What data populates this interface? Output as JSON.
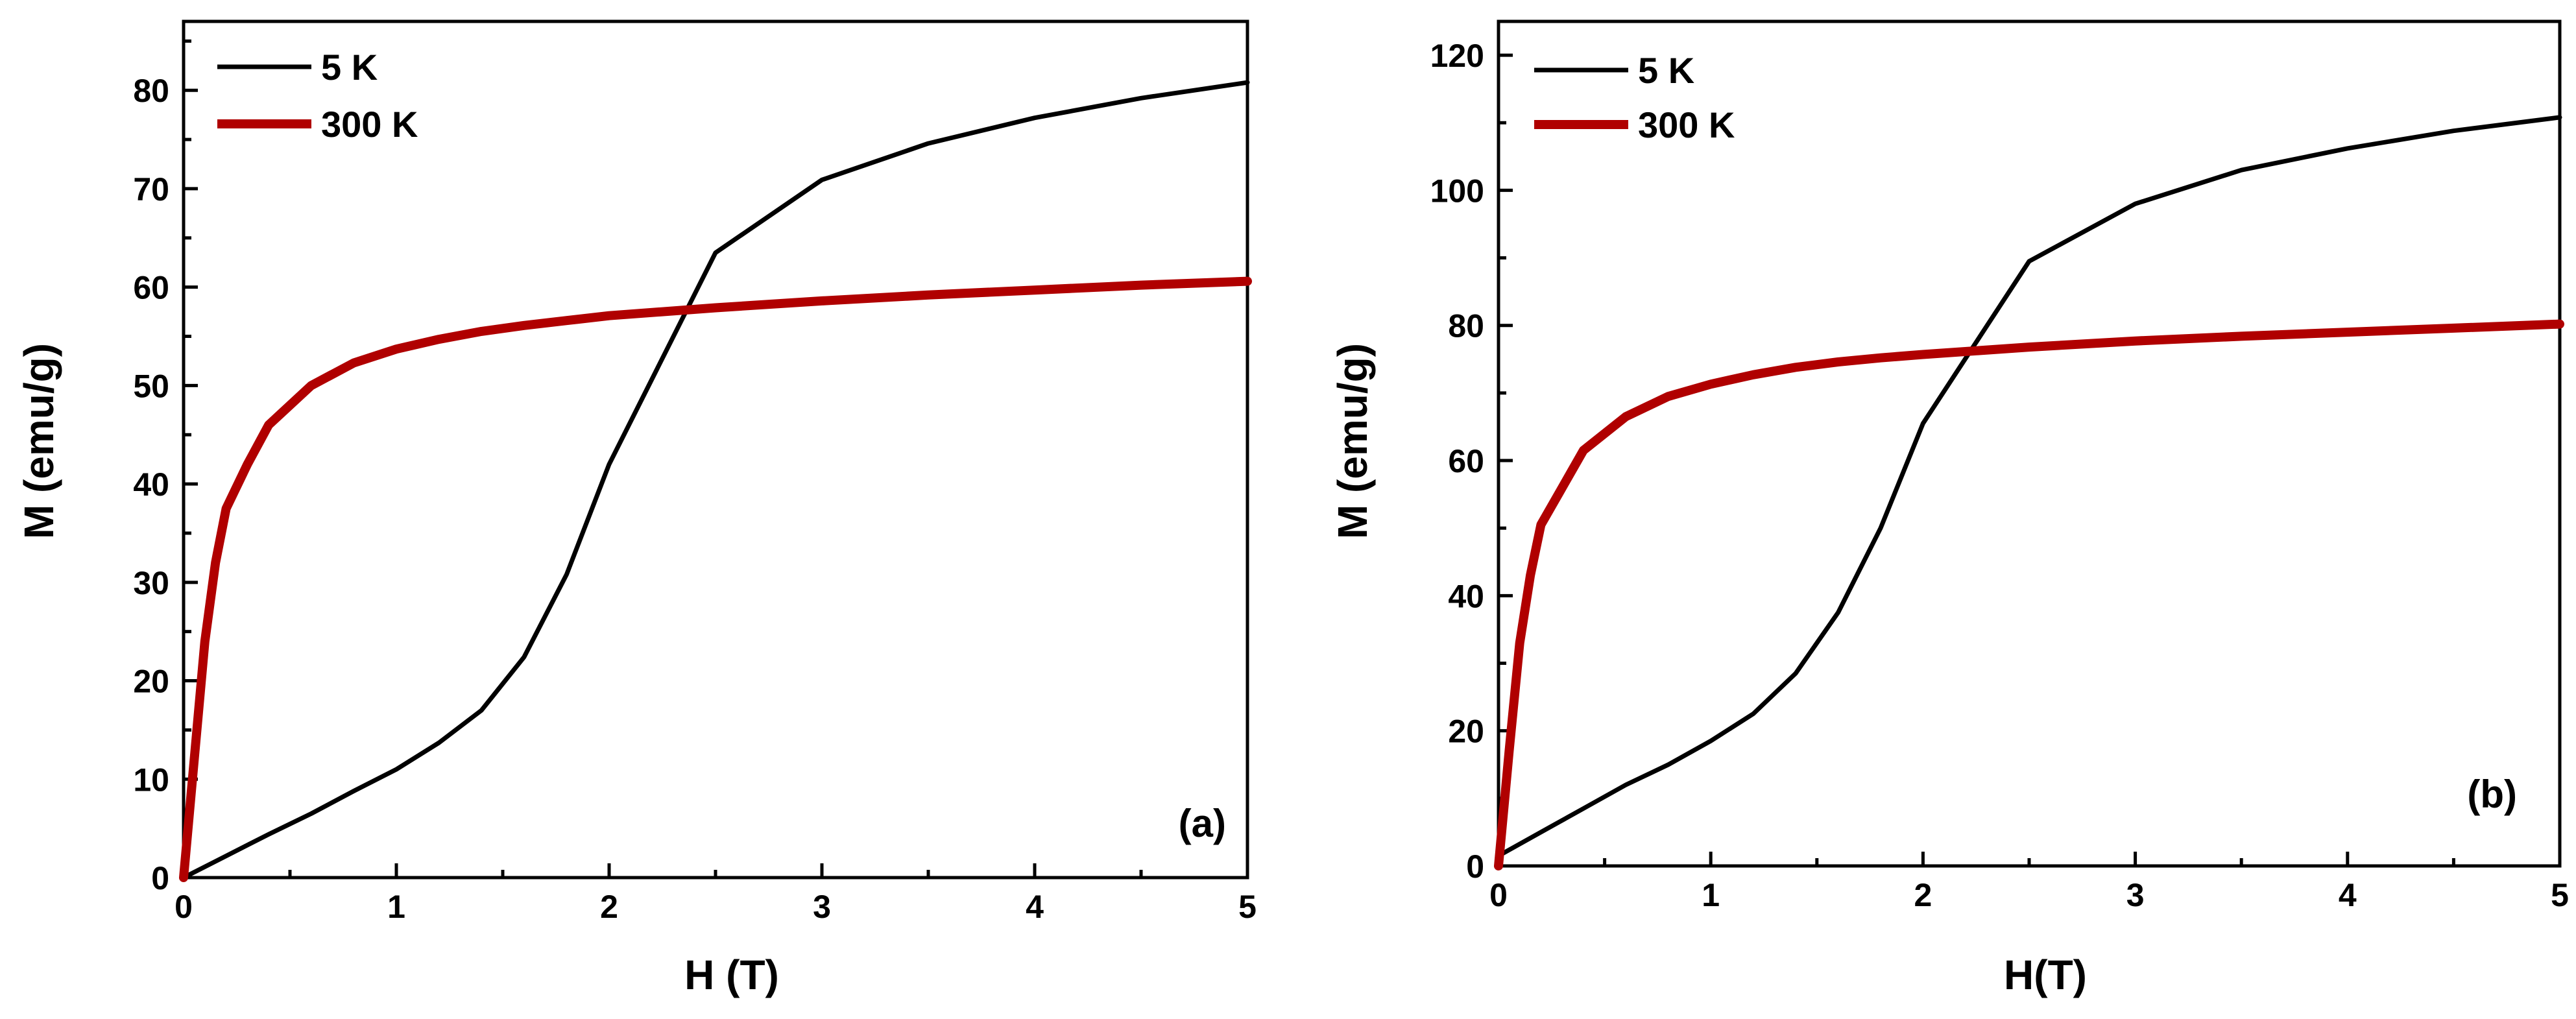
{
  "chart_data": [
    {
      "type": "line",
      "panel_label": "(a)",
      "xlabel": "H (T)",
      "ylabel": "M (emu/g)",
      "xlim": [
        0,
        5
      ],
      "ylim": [
        0,
        87
      ],
      "xticks": [
        0,
        1,
        2,
        3,
        4,
        5
      ],
      "yticks": [
        0,
        10,
        20,
        30,
        40,
        50,
        60,
        70,
        80
      ],
      "legend_position": "top-left",
      "series": [
        {
          "name": "5 K",
          "color": "#000000",
          "x": [
            0,
            0.2,
            0.4,
            0.6,
            0.8,
            1.0,
            1.2,
            1.4,
            1.6,
            1.8,
            2.0,
            2.5,
            3.0,
            3.5,
            4.0,
            4.5,
            5.0
          ],
          "y": [
            0,
            2.2,
            4.4,
            6.5,
            8.8,
            11.0,
            13.7,
            17.0,
            22.4,
            30.8,
            42.0,
            63.5,
            70.9,
            74.6,
            77.2,
            79.2,
            80.8
          ]
        },
        {
          "name": "300 K",
          "color": "#b00000",
          "x": [
            0,
            0.05,
            0.1,
            0.15,
            0.2,
            0.3,
            0.4,
            0.6,
            0.8,
            1.0,
            1.2,
            1.4,
            1.6,
            1.8,
            2.0,
            2.5,
            3.0,
            3.5,
            4.0,
            4.5,
            5.0
          ],
          "y": [
            0,
            12,
            24,
            32,
            37.5,
            42,
            46,
            50,
            52.3,
            53.7,
            54.7,
            55.5,
            56.1,
            56.6,
            57.1,
            57.9,
            58.6,
            59.2,
            59.7,
            60.2,
            60.6
          ]
        }
      ]
    },
    {
      "type": "line",
      "panel_label": "(b)",
      "xlabel": "H(T)",
      "ylabel": "M (emu/g)",
      "xlim": [
        0,
        5
      ],
      "ylim": [
        0,
        125
      ],
      "xticks": [
        0,
        1,
        2,
        3,
        4,
        5
      ],
      "yticks": [
        0,
        20,
        40,
        60,
        80,
        100,
        120
      ],
      "legend_position": "top-left",
      "series": [
        {
          "name": "5 K",
          "color": "#000000",
          "x": [
            0,
            0.2,
            0.4,
            0.6,
            0.8,
            1.0,
            1.2,
            1.4,
            1.6,
            1.8,
            2.0,
            2.5,
            3.0,
            3.5,
            4.0,
            4.5,
            5.0
          ],
          "y": [
            1.5,
            5,
            8.5,
            12,
            15,
            18.5,
            22.5,
            28.5,
            37.5,
            50,
            65.5,
            89.5,
            98,
            103,
            106.2,
            108.8,
            110.8
          ]
        },
        {
          "name": "300 K",
          "color": "#b00000",
          "x": [
            0,
            0.05,
            0.1,
            0.15,
            0.2,
            0.3,
            0.4,
            0.6,
            0.8,
            1.0,
            1.2,
            1.4,
            1.6,
            1.8,
            2.0,
            2.5,
            3.0,
            3.5,
            4.0,
            4.5,
            5.0
          ],
          "y": [
            0,
            17,
            33,
            43,
            50.5,
            56,
            61.5,
            66.5,
            69.5,
            71.3,
            72.7,
            73.8,
            74.6,
            75.2,
            75.7,
            76.8,
            77.7,
            78.4,
            79.0,
            79.6,
            80.2
          ]
        }
      ]
    }
  ]
}
